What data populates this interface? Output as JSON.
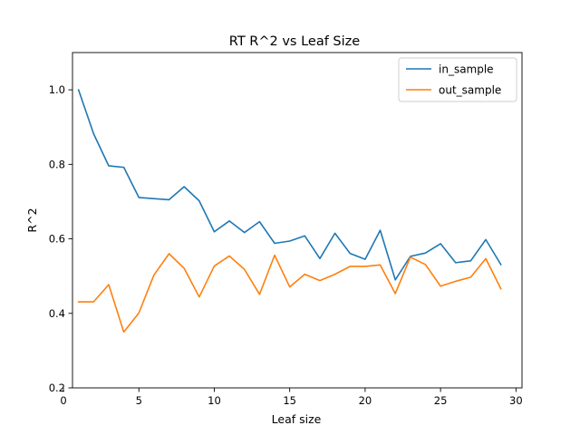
{
  "chart_data": {
    "type": "line",
    "title": "RT R^2 vs Leaf Size",
    "xlabel": "Leaf size",
    "ylabel": "R^2",
    "xlim": [
      0.6,
      30.4
    ],
    "ylim": [
      0.2,
      1.1
    ],
    "xticks": [
      0,
      5,
      10,
      15,
      20,
      25,
      30
    ],
    "yticks": [
      0.2,
      0.4,
      0.6,
      0.8,
      1.0
    ],
    "xtick_labels": [
      "0",
      "5",
      "10",
      "15",
      "20",
      "25",
      "30"
    ],
    "ytick_labels": [
      "0.2",
      "0.4",
      "0.6",
      "0.8",
      "1.0"
    ],
    "grid": false,
    "legend": "top-right",
    "x": [
      1,
      2,
      3,
      4,
      5,
      6,
      7,
      8,
      9,
      10,
      11,
      12,
      13,
      14,
      15,
      16,
      17,
      18,
      19,
      20,
      21,
      22,
      23,
      24,
      25,
      26,
      27,
      28,
      29
    ],
    "series": [
      {
        "name": "in_sample",
        "color": "#1f77b4",
        "values": [
          1.0,
          0.882,
          0.796,
          0.792,
          0.711,
          0.708,
          0.705,
          0.74,
          0.702,
          0.619,
          0.648,
          0.617,
          0.646,
          0.588,
          0.594,
          0.608,
          0.547,
          0.615,
          0.561,
          0.545,
          0.623,
          0.49,
          0.553,
          0.562,
          0.587,
          0.536,
          0.541,
          0.598,
          0.531
        ]
      },
      {
        "name": "out_sample",
        "color": "#ff7f0e",
        "values": [
          0.431,
          0.431,
          0.477,
          0.35,
          0.401,
          0.503,
          0.56,
          0.521,
          0.444,
          0.527,
          0.554,
          0.518,
          0.451,
          0.556,
          0.471,
          0.505,
          0.488,
          0.505,
          0.526,
          0.526,
          0.53,
          0.453,
          0.551,
          0.531,
          0.473,
          0.486,
          0.497,
          0.547,
          0.466
        ]
      }
    ]
  }
}
